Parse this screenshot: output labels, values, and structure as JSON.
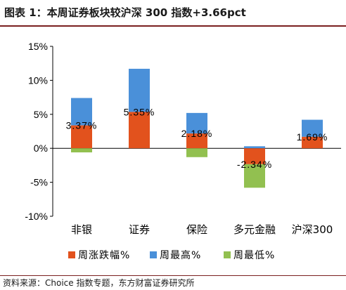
{
  "title": "图表 1：本周证券板块较沪深 300 指数+3.66pct",
  "source": "资料来源：Choice 指数专题，东方财富证券研究所",
  "chart_data": {
    "type": "bar",
    "categories": [
      "非银",
      "证券",
      "保险",
      "多元金融",
      "沪深300"
    ],
    "series": [
      {
        "name": "周涨跌幅%",
        "color": "#e2521d",
        "values": [
          3.37,
          5.35,
          2.18,
          -2.34,
          1.69
        ]
      },
      {
        "name": "周最高%",
        "color": "#4a90d9",
        "values": [
          7.4,
          11.7,
          5.2,
          0.3,
          4.2
        ]
      },
      {
        "name": "周最低%",
        "color": "#92c050",
        "values": [
          -0.6,
          0.0,
          -1.3,
          -5.8,
          0.0
        ]
      }
    ],
    "data_labels": [
      "3.37%",
      "5.35%",
      "2.18%",
      "-2.34%",
      "1.69%"
    ],
    "y_ticks": [
      "15%",
      "10%",
      "5%",
      "0%",
      "-5%",
      "-10%"
    ],
    "ylim": [
      -10,
      15
    ],
    "legend_position": "bottom",
    "grid": false
  }
}
